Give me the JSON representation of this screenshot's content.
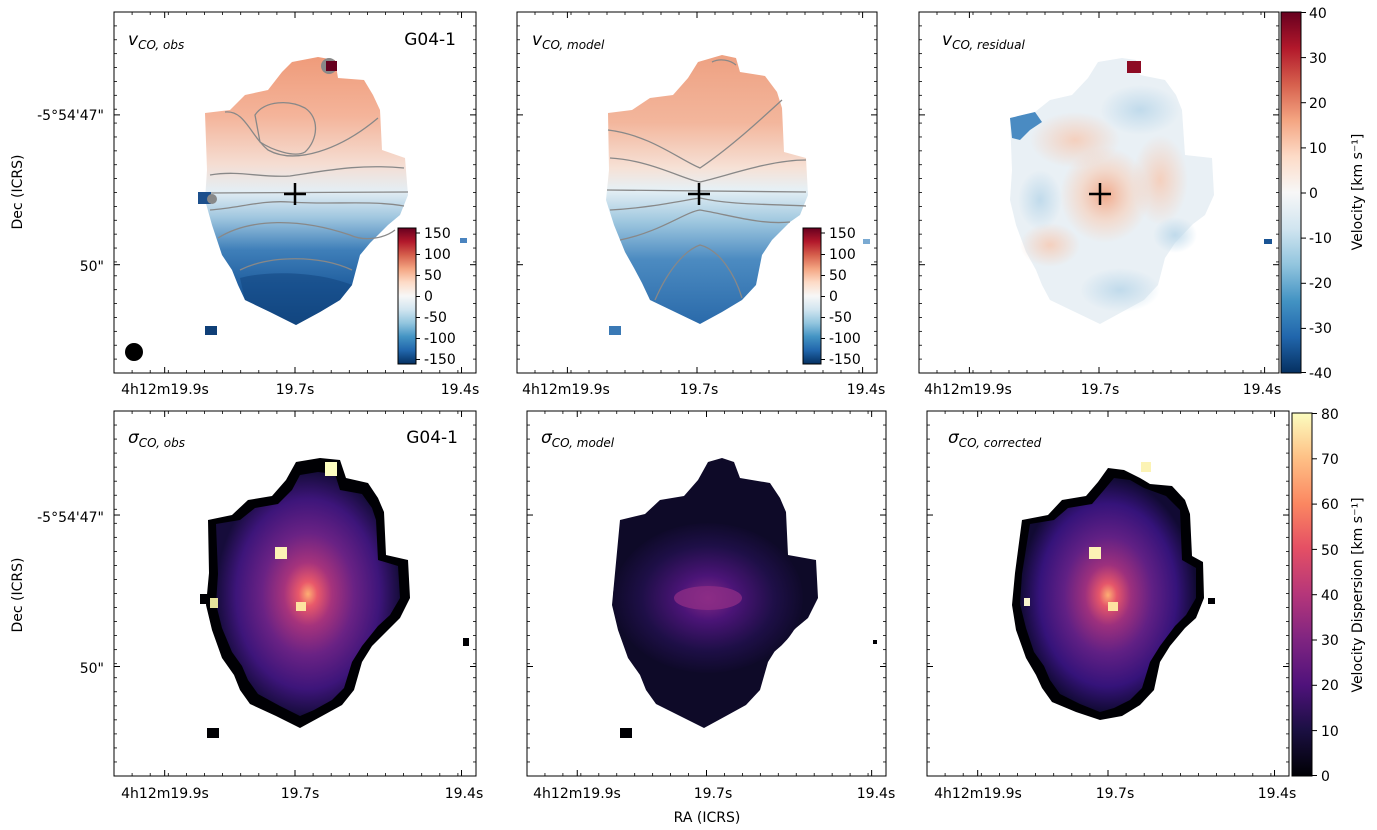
{
  "figure": {
    "xlabel": "RA (ICRS)",
    "ylabel": "Dec (ICRS)"
  },
  "chart_data": [
    {
      "type": "heatmap",
      "panel": "v_obs",
      "label_base": "v",
      "label_sub": "CO, obs",
      "name_label": "G04-1",
      "colormap": "RdBu_r",
      "x_ticks": [
        "4h12m19.9s",
        "19.7s",
        "19.4s"
      ],
      "y_ticks": [
        "-5°54'47\"",
        "50\""
      ],
      "colorbar": {
        "placement": "inset-lower-right",
        "range": [
          -160,
          160
        ],
        "ticks": [
          150,
          100,
          50,
          0,
          -50,
          -100,
          -150
        ]
      },
      "overlays": [
        "contours",
        "center-cross",
        "beam"
      ]
    },
    {
      "type": "heatmap",
      "panel": "v_model",
      "label_base": "v",
      "label_sub": "CO, model",
      "colormap": "RdBu_r",
      "x_ticks": [
        "4h12m19.9s",
        "19.7s",
        "19.4s"
      ],
      "colorbar": {
        "placement": "inset-lower-right",
        "range": [
          -160,
          160
        ],
        "ticks": [
          150,
          100,
          50,
          0,
          -50,
          -100,
          -150
        ]
      },
      "overlays": [
        "contours",
        "center-cross"
      ]
    },
    {
      "type": "heatmap",
      "panel": "v_residual",
      "label_base": "v",
      "label_sub": "CO, residual",
      "colormap": "RdBu_r",
      "x_ticks": [
        "4h12m19.9s",
        "19.7s",
        "19.4s"
      ],
      "colorbar": {
        "placement": "right",
        "label": "Velocity [km s⁻¹]",
        "range": [
          -40,
          40
        ],
        "ticks": [
          40,
          30,
          20,
          10,
          0,
          -10,
          -20,
          -30,
          -40
        ]
      },
      "overlays": [
        "center-cross"
      ]
    },
    {
      "type": "heatmap",
      "panel": "sigma_obs",
      "label_base": "σ",
      "label_sub": "CO, obs",
      "name_label": "G04-1",
      "colormap": "magma",
      "x_ticks": [
        "4h12m19.9s",
        "19.7s",
        "19.4s"
      ],
      "y_ticks": [
        "-5°54'47\"",
        "50\""
      ]
    },
    {
      "type": "heatmap",
      "panel": "sigma_model",
      "label_base": "σ",
      "label_sub": "CO, model",
      "colormap": "magma",
      "x_ticks": [
        "4h12m19.9s",
        "19.7s",
        "19.4s"
      ]
    },
    {
      "type": "heatmap",
      "panel": "sigma_corrected",
      "label_base": "σ",
      "label_sub": "CO, corrected",
      "colormap": "magma",
      "x_ticks": [
        "4h12m19.9s",
        "19.7s",
        "19.4s"
      ],
      "colorbar": {
        "placement": "right",
        "label": "Velocity Dispersion [km s⁻¹]",
        "range": [
          0,
          80
        ],
        "ticks": [
          80,
          70,
          60,
          50,
          40,
          30,
          20,
          10,
          0
        ]
      }
    }
  ]
}
